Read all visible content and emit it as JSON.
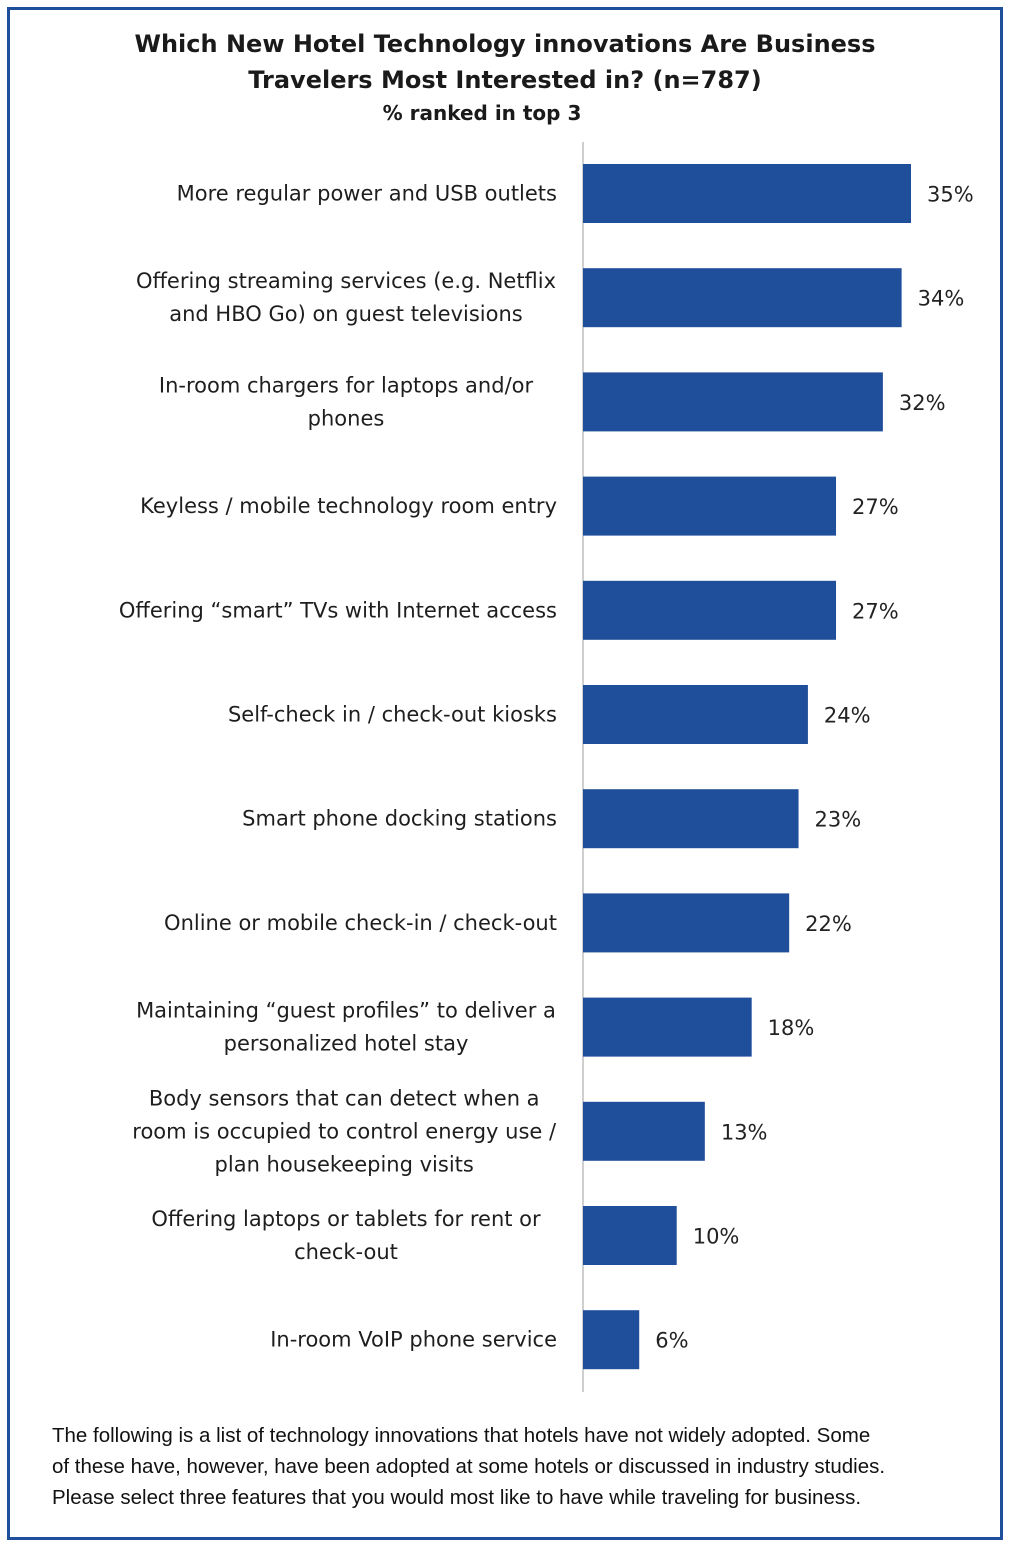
{
  "chart_data": {
    "type": "bar",
    "orientation": "horizontal",
    "title": "Which New Hotel Technology innovations Are Business Travelers Most Interested in? (n=787)",
    "title_lines": [
      "Which New Hotel Technology innovations Are Business",
      "Travelers Most Interested in? (n=787)"
    ],
    "subtitle": "% ranked in top 3",
    "xlabel": "",
    "ylabel": "",
    "xlim": [
      0,
      35
    ],
    "unit": "%",
    "bar_color": "#1f4e9a",
    "categories": [
      [
        "More regular power and USB outlets"
      ],
      [
        "Offering streaming services (e.g. Netflix",
        "and HBO Go) on guest televisions"
      ],
      [
        "In-room chargers for laptops and/or",
        "phones"
      ],
      [
        "Keyless / mobile technology room entry"
      ],
      [
        "Offering “smart” TVs with Internet access"
      ],
      [
        "Self-check in / check-out kiosks"
      ],
      [
        "Smart phone docking stations"
      ],
      [
        "Online or mobile check-in / check-out"
      ],
      [
        "Maintaining “guest profiles” to deliver a",
        "personalized hotel stay"
      ],
      [
        "Body sensors that can detect when a",
        "room is occupied to control energy use /",
        "plan housekeeping visits"
      ],
      [
        "Offering laptops or tablets for rent or",
        "check-out"
      ],
      [
        "In-room VoIP phone service"
      ]
    ],
    "values": [
      35,
      34,
      32,
      27,
      27,
      24,
      23,
      22,
      18,
      13,
      10,
      6
    ],
    "value_labels": [
      "35%",
      "34%",
      "32%",
      "27%",
      "27%",
      "24%",
      "23%",
      "22%",
      "18%",
      "13%",
      "10%",
      "6%"
    ]
  },
  "footnote": [
    "The following is a list of technology innovations that hotels have not widely adopted. Some",
    "of these have, however, have been adopted at some hotels or discussed in industry studies.",
    "Please select three features that you would most like to have while traveling for business."
  ]
}
